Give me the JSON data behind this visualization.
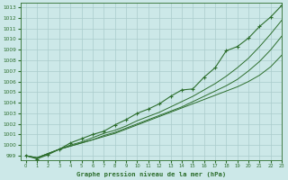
{
  "title": "Graphe pression niveau de la mer (hPa)",
  "bg_color": "#cce8e8",
  "grid_color": "#aacccc",
  "line_color": "#2d6e2d",
  "marker_color": "#2d6e2d",
  "xlim": [
    -0.5,
    23
  ],
  "ylim": [
    998.6,
    1013.4
  ],
  "yticks": [
    999,
    1000,
    1001,
    1002,
    1003,
    1004,
    1005,
    1006,
    1007,
    1008,
    1009,
    1010,
    1011,
    1012,
    1013
  ],
  "xticks": [
    0,
    1,
    2,
    3,
    4,
    5,
    6,
    7,
    8,
    9,
    10,
    11,
    12,
    13,
    14,
    15,
    16,
    17,
    18,
    19,
    20,
    21,
    22,
    23
  ],
  "line1": [
    999.0,
    998.8,
    999.2,
    999.6,
    999.9,
    1000.2,
    1000.5,
    1000.8,
    1001.1,
    1001.5,
    1001.9,
    1002.3,
    1002.7,
    1003.1,
    1003.5,
    1003.9,
    1004.3,
    1004.7,
    1005.1,
    1005.5,
    1006.0,
    1006.6,
    1007.4,
    1008.5
  ],
  "line2": [
    999.0,
    998.8,
    999.2,
    999.6,
    999.9,
    1000.2,
    1000.5,
    1000.9,
    1001.2,
    1001.6,
    1002.0,
    1002.4,
    1002.8,
    1003.2,
    1003.6,
    1004.1,
    1004.6,
    1005.1,
    1005.6,
    1006.2,
    1007.0,
    1007.9,
    1009.0,
    1010.3
  ],
  "line3": [
    999.0,
    998.8,
    999.2,
    999.6,
    1000.0,
    1000.3,
    1000.7,
    1001.1,
    1001.4,
    1001.8,
    1002.3,
    1002.7,
    1003.1,
    1003.6,
    1004.1,
    1004.6,
    1005.2,
    1005.8,
    1006.5,
    1007.3,
    1008.2,
    1009.3,
    1010.5,
    1011.8
  ],
  "line4_marker": [
    999.0,
    998.7,
    999.1,
    999.6,
    1000.2,
    1000.6,
    1001.0,
    1001.3,
    1001.9,
    1002.4,
    1003.0,
    1003.4,
    1003.9,
    1004.6,
    1005.2,
    1005.3,
    1006.4,
    1007.3,
    1008.9,
    1009.3,
    1010.1,
    1011.2,
    1012.1,
    1013.2
  ]
}
